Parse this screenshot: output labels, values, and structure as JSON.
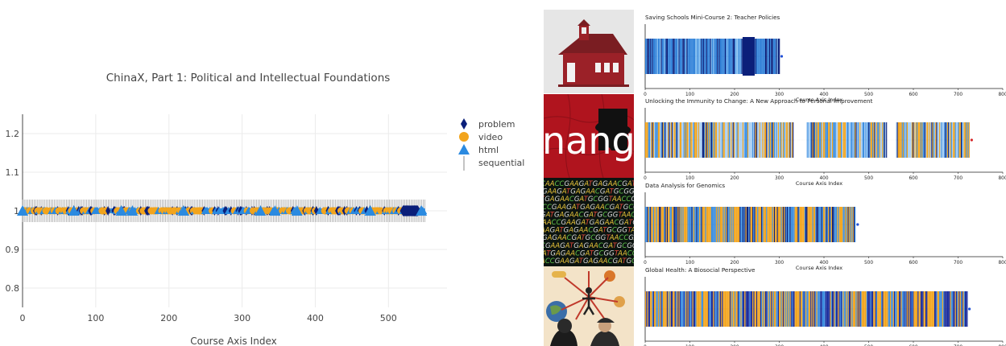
{
  "chart_data": [
    {
      "type": "scatter",
      "title": "ChinaX, Part 1: Political and Intellectual Foundations",
      "xlabel": "Course Axis Index",
      "ylabel": "",
      "xlim": [
        0,
        580
      ],
      "ylim": [
        0.75,
        1.25
      ],
      "xticks": [
        "0",
        "100",
        "200",
        "300",
        "400",
        "500"
      ],
      "yticks": [
        "0.8",
        "0.9",
        "1",
        "1.1",
        "1.2"
      ],
      "grid": true,
      "legend_position": "top-right",
      "series": [
        {
          "name": "problem",
          "marker": "diamond",
          "color": "#0b1f7a",
          "y": 1,
          "x_range": [
            0,
            550
          ]
        },
        {
          "name": "video",
          "marker": "circle",
          "color": "#f2a41c",
          "y": 1,
          "x_range": [
            0,
            550
          ]
        },
        {
          "name": "html",
          "marker": "triangle",
          "color": "#2b8ae0",
          "y": 1,
          "x_range": [
            0,
            550
          ]
        },
        {
          "name": "sequential",
          "marker": "vline",
          "color": "#aaaaaa",
          "y": 1,
          "x_range": [
            0,
            550
          ]
        }
      ]
    },
    {
      "type": "bar",
      "title": "Saving Schools Mini-Course 2: Teacher Policies",
      "xlabel": "Course Axis Index",
      "xlim": [
        0,
        800
      ],
      "xticks": [
        "0",
        "100",
        "200",
        "300",
        "400",
        "500",
        "600",
        "700",
        "800"
      ],
      "course_length": 300,
      "end_marker_color": "#1f4fd6",
      "image": "red-schoolhouse"
    },
    {
      "type": "bar",
      "title": "Unlocking the Immunity to Change: A New Approach to Personal Improvement",
      "xlabel": "Course Axis Index",
      "xlim": [
        0,
        800
      ],
      "xticks": [
        "0",
        "100",
        "200",
        "300",
        "400",
        "500",
        "600",
        "700",
        "800"
      ],
      "course_length": 725,
      "end_marker_color": "#d62728",
      "image": "puzzle-change"
    },
    {
      "type": "bar",
      "title": "Data Analysis for Genomics",
      "xlabel": "Course Axis Index",
      "xlim": [
        0,
        800
      ],
      "xticks": [
        "0",
        "100",
        "200",
        "300",
        "400",
        "500",
        "600",
        "700",
        "800"
      ],
      "course_length": 470,
      "end_marker_color": "#1f4fd6",
      "image": "dna-sequence"
    },
    {
      "type": "bar",
      "title": "Global Health: A Biosocial Perspective",
      "xlabel": "Course Axis Index",
      "xlim": [
        0,
        800
      ],
      "xticks": [
        "0",
        "100",
        "200",
        "300",
        "400",
        "500",
        "600",
        "700",
        "800"
      ],
      "course_length": 720,
      "end_marker_color": "#1f4fd6",
      "image": "global-health-illustration"
    }
  ],
  "thumbnails": {
    "change_text": "nang",
    "dna_text": "CAACCGAAGATGAGAACGATGCGGTAACCGAAGATGAGAACGATG"
  }
}
